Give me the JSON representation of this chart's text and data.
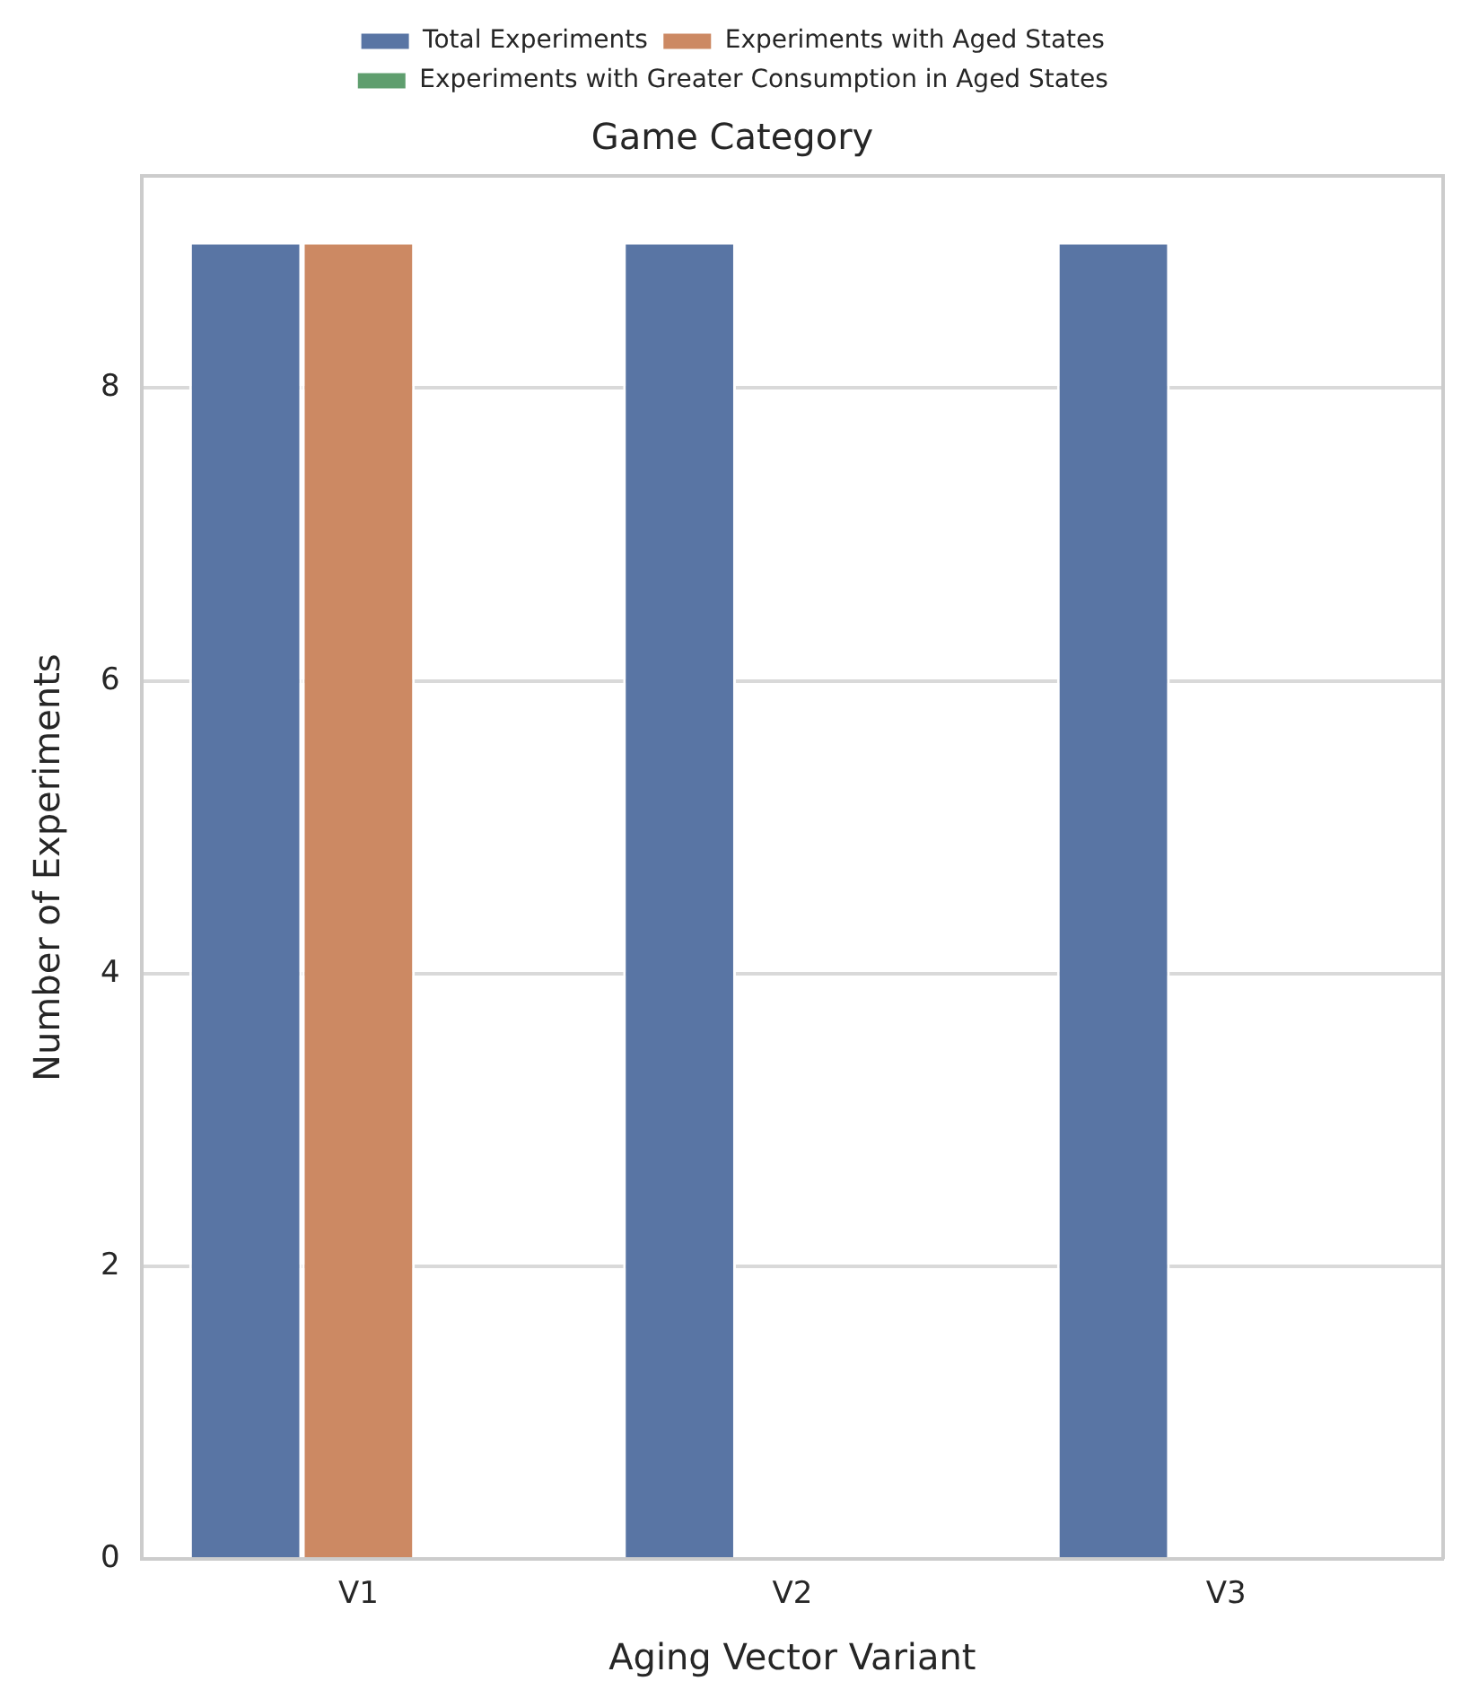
{
  "chart_data": {
    "type": "bar",
    "title": "Game Category",
    "xlabel": "Aging Vector Variant",
    "ylabel": "Number of Experiments",
    "categories": [
      "V1",
      "V2",
      "V3"
    ],
    "series": [
      {
        "name": "Total Experiments",
        "color": "#5975a4",
        "values": [
          9,
          9,
          9
        ]
      },
      {
        "name": "Experiments with Aged States",
        "color": "#cc8963",
        "values": [
          9,
          0,
          0
        ]
      },
      {
        "name": "Experiments with Greater Consumption in Aged States",
        "color": "#5f9e6e",
        "values": [
          0,
          0,
          0
        ]
      }
    ],
    "ylim": [
      0,
      9.45
    ],
    "yticks": [
      0,
      2,
      4,
      6,
      8
    ],
    "grid": "y",
    "legend": "top"
  }
}
